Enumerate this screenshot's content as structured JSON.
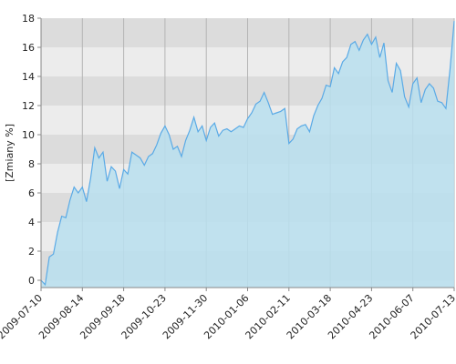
{
  "chart_data": {
    "type": "area",
    "y_label": "[Zmiany %]",
    "categories": [
      "2009-07-10",
      null,
      null,
      null,
      null,
      null,
      null,
      null,
      null,
      null,
      "2009-08-14",
      null,
      null,
      null,
      null,
      null,
      null,
      null,
      null,
      null,
      "2009-09-18",
      null,
      null,
      null,
      null,
      null,
      null,
      null,
      null,
      null,
      "2009-10-23",
      null,
      null,
      null,
      null,
      null,
      null,
      null,
      null,
      null,
      "2009-11-30",
      null,
      null,
      null,
      null,
      null,
      null,
      null,
      null,
      null,
      "2010-01-06",
      null,
      null,
      null,
      null,
      null,
      null,
      null,
      null,
      null,
      "2010-02-11",
      null,
      null,
      null,
      null,
      null,
      null,
      null,
      null,
      null,
      "2010-03-18",
      null,
      null,
      null,
      null,
      null,
      null,
      null,
      null,
      null,
      "2010-04-23",
      null,
      null,
      null,
      null,
      null,
      null,
      null,
      null,
      null,
      "2010-06-07",
      null,
      null,
      null,
      null,
      null,
      null,
      null,
      null,
      null,
      "2010-07-13"
    ],
    "values": [
      0,
      -0.3,
      1.6,
      1.8,
      3.3,
      4.4,
      4.3,
      5.5,
      6.4,
      6.0,
      6.4,
      5.4,
      7.0,
      9.1,
      8.4,
      8.8,
      6.8,
      7.8,
      7.5,
      6.3,
      7.6,
      7.3,
      8.8,
      8.6,
      8.4,
      7.9,
      8.5,
      8.7,
      9.3,
      10.1,
      10.6,
      10.0,
      9.0,
      9.2,
      8.5,
      9.6,
      10.3,
      11.2,
      10.2,
      10.6,
      9.6,
      10.5,
      10.8,
      9.9,
      10.3,
      10.4,
      10.2,
      10.4,
      10.6,
      10.5,
      11.1,
      11.5,
      12.1,
      12.3,
      12.9,
      12.2,
      11.4,
      11.5,
      11.6,
      11.8,
      9.4,
      9.7,
      10.4,
      10.6,
      10.7,
      10.2,
      11.3,
      12.0,
      12.5,
      13.4,
      13.3,
      14.6,
      14.2,
      15.0,
      15.3,
      16.2,
      16.4,
      15.8,
      16.5,
      16.9,
      16.2,
      16.7,
      15.3,
      16.3,
      13.7,
      12.9,
      14.9,
      14.4,
      12.6,
      11.9,
      13.5,
      13.9,
      12.2,
      13.1,
      13.5,
      13.2,
      12.3,
      12.2,
      11.8,
      14.5,
      17.8
    ],
    "fill_color": "#b9dfee",
    "line_color": "#5aaae6",
    "ylim": [
      -0.5,
      18
    ],
    "yticks": [
      0,
      2,
      4,
      6,
      8,
      10,
      12,
      14,
      16,
      18
    ],
    "grid": true
  }
}
